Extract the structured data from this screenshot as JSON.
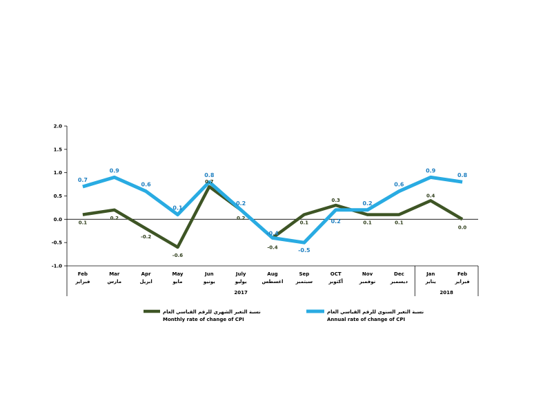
{
  "chart_data": {
    "type": "line",
    "categories": [
      {
        "en": "Feb",
        "ar": "فبراير"
      },
      {
        "en": "Mar",
        "ar": "مارس"
      },
      {
        "en": "Apr",
        "ar": "ابريل"
      },
      {
        "en": "May",
        "ar": "مايو"
      },
      {
        "en": "Jun",
        "ar": "يونيو"
      },
      {
        "en": "July",
        "ar": "يوليو"
      },
      {
        "en": "Aug",
        "ar": "اغسطس"
      },
      {
        "en": "Sep",
        "ar": "سبتمبر"
      },
      {
        "en": "OCT",
        "ar": "أكتوبر"
      },
      {
        "en": "Nov",
        "ar": "نوفمبر"
      },
      {
        "en": "Dec",
        "ar": "ديسمبر"
      },
      {
        "en": "Jan",
        "ar": "يناير"
      },
      {
        "en": "Feb",
        "ar": "فبراير"
      }
    ],
    "year_groups": [
      {
        "label": "2017",
        "start": 0,
        "end": 10
      },
      {
        "label": "2018",
        "start": 11,
        "end": 12
      }
    ],
    "series": [
      {
        "name": "Monthly rate of change of CPI",
        "name_ar": "نسبة التغير الشهري للرقم القياسي العام",
        "color": "#3e5525",
        "values": [
          0.1,
          0.2,
          -0.2,
          -0.6,
          0.7,
          0.2,
          -0.4,
          0.1,
          0.3,
          0.1,
          0.1,
          0.4,
          0.0
        ],
        "labels": [
          "0.1",
          "0.2",
          "-0.2",
          "-0.6",
          "0.7",
          "0.2",
          "-0.4",
          "0.1",
          "0.3",
          "0.1",
          "0.1",
          "0.4",
          "0.0"
        ]
      },
      {
        "name": "Annual rate of change of CPI",
        "name_ar": "نسبة التغير السنوي للرقم القياسي العام",
        "color": "#29abe2",
        "values": [
          0.7,
          0.9,
          0.6,
          0.1,
          0.8,
          0.2,
          -0.4,
          -0.5,
          0.2,
          0.2,
          0.6,
          0.9,
          0.8
        ],
        "labels": [
          "0.7",
          "0.9",
          "0.6",
          "0.1",
          "0.8",
          "0.2",
          "-0.4",
          "-0.5",
          "0.2",
          "0.2",
          "0.6",
          "0.9",
          "0.8"
        ]
      }
    ],
    "yticks": [
      "2.0",
      "1.5",
      "1.0",
      "0.5",
      "0.0",
      "-0.5",
      "-1.0"
    ],
    "ylim": [
      -1.0,
      2.0
    ],
    "grid": false,
    "legend_position": "bottom",
    "title": "",
    "xlabel": "",
    "ylabel": ""
  }
}
